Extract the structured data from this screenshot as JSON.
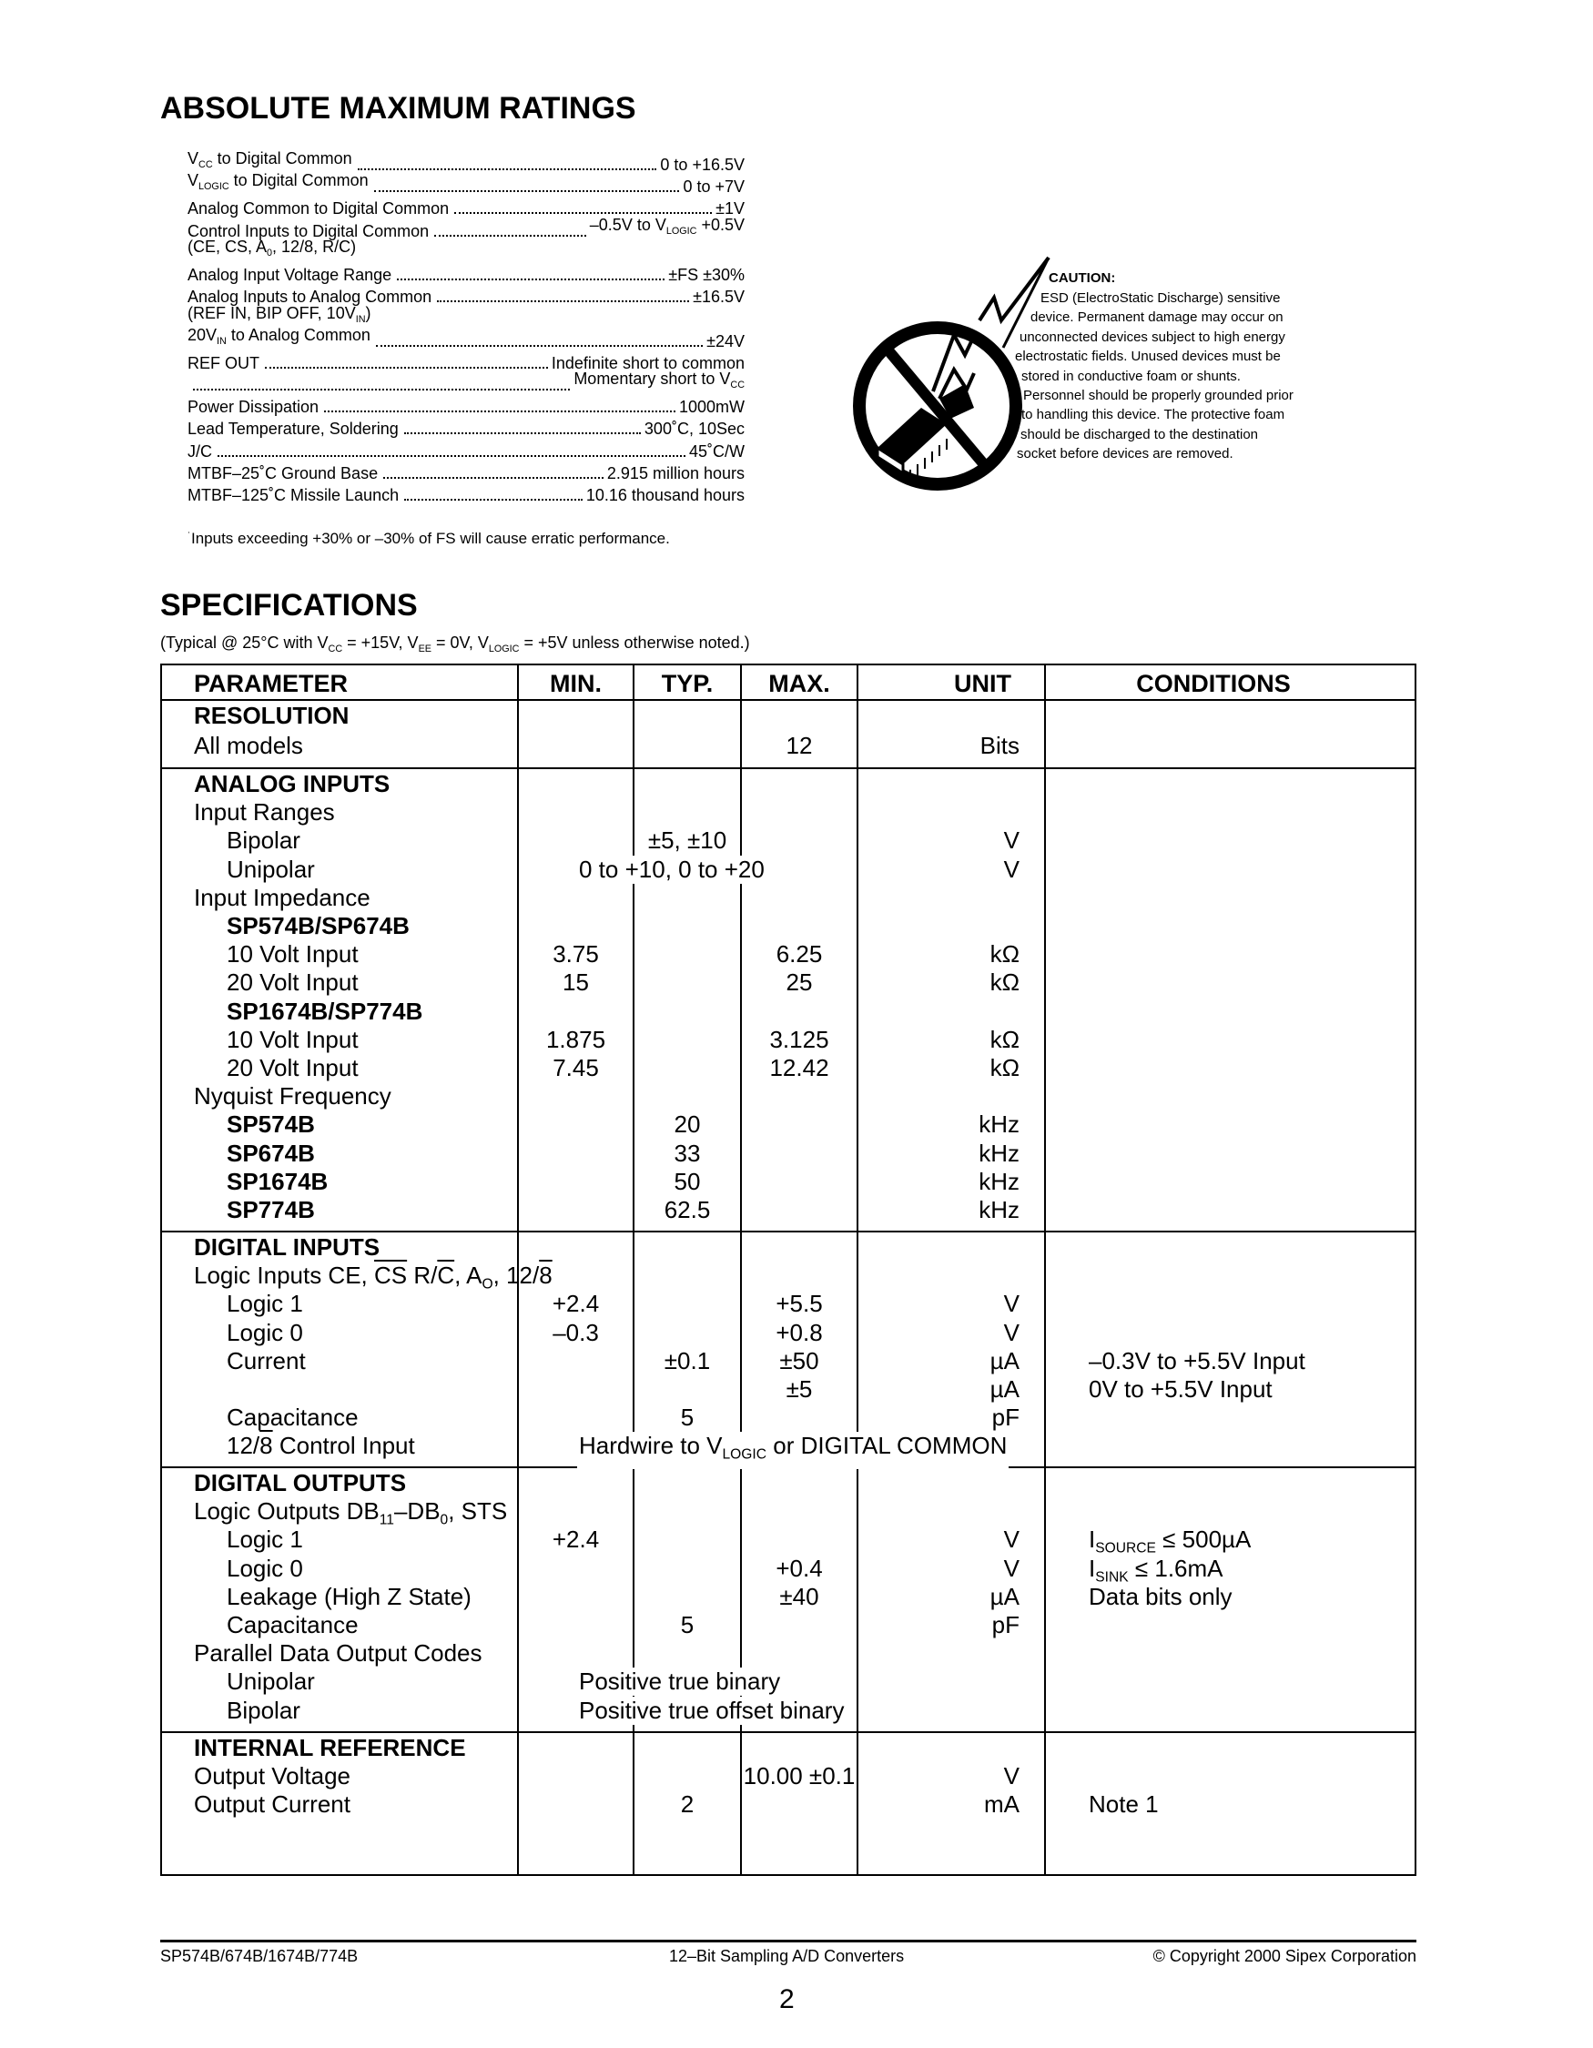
{
  "absolute_max": {
    "title": "ABSOLUTE MAXIMUM RATINGS",
    "items": [
      {
        "label": [
          [
            "V"
          ],
          [
            "CC",
            "sub"
          ],
          [
            " to Digital Common"
          ]
        ],
        "value": [
          [
            "0 to +16.5V"
          ]
        ]
      },
      {
        "label": [
          [
            "V"
          ],
          [
            "LOGIC",
            "sub"
          ],
          [
            " to Digital Common"
          ]
        ],
        "value": [
          [
            "0 to +7V"
          ]
        ]
      },
      {
        "label": [
          [
            "Analog Common to Digital Common"
          ]
        ],
        "value": [
          [
            "±1V"
          ]
        ]
      },
      {
        "label": [
          [
            "Control Inputs  to Digital Common"
          ]
        ],
        "value": [
          [
            "–0.5V to V"
          ],
          [
            "LOGIC",
            "sub"
          ],
          [
            " +0.5V"
          ]
        ]
      },
      {
        "label": [
          [
            "(CE, CS, A"
          ],
          [
            "0",
            "sub"
          ],
          [
            ", 12/8, R/C)"
          ]
        ],
        "value": []
      },
      {
        "label": [
          [
            "Analog Input Voltage Range"
          ]
        ],
        "value": [
          [
            "±FS ±30%"
          ]
        ]
      },
      {
        "label": [
          [
            "Analog Inputs  to Analog Common"
          ]
        ],
        "value": [
          [
            "±16.5V"
          ]
        ]
      },
      {
        "label": [
          [
            "(REF IN, BIP OFF, 10V"
          ],
          [
            "IN",
            "sub"
          ],
          [
            ")"
          ]
        ],
        "value": []
      },
      {
        "label": [
          [
            "20V"
          ],
          [
            "IN",
            "sub"
          ],
          [
            " to Analog Common"
          ]
        ],
        "value": [
          [
            "±24V"
          ]
        ]
      },
      {
        "label": [
          [
            "REF OUT"
          ]
        ],
        "value": [
          [
            "Indefinite short to common"
          ]
        ]
      },
      {
        "label": [],
        "value": [
          [
            "Momentary short to V"
          ],
          [
            "CC",
            "sub"
          ]
        ]
      },
      {
        "label": [
          [
            "Power Dissipation"
          ]
        ],
        "value": [
          [
            "1000mW"
          ]
        ]
      },
      {
        "label": [
          [
            "Lead Temperature, Soldering"
          ]
        ],
        "value": [
          [
            "300˚C,  10Sec"
          ]
        ]
      },
      {
        "label": [
          [
            "J/C"
          ]
        ],
        "value": [
          [
            "45˚C/W"
          ]
        ]
      },
      {
        "label": [
          [
            "MTBF–25˚C  Ground  Base"
          ]
        ],
        "value": [
          [
            "2.915 million hours"
          ]
        ]
      },
      {
        "label": [
          [
            "MTBF–125˚C  Missile  Launch"
          ]
        ],
        "value": [
          [
            "10.16 thousand hours"
          ]
        ]
      }
    ],
    "footnote_mark": "˙",
    "footnote": "Inputs exceeding +30% or –30% of FS will cause erratic performance."
  },
  "esd_caution": {
    "icon": "esd-warning-icon",
    "title": "CAUTION:",
    "lines": [
      "ESD (ElectroStatic Discharge) sensitive",
      "device. Permanent damage may occur on",
      "unconnected devices subject to high energy",
      "electrostatic fields. Unused devices must be",
      "stored in conductive foam or shunts.",
      "Personnel should be properly grounded prior",
      "to handling this device. The protective foam",
      "should be discharged to the destination",
      "socket before devices are removed."
    ]
  },
  "specifications": {
    "title": "SPECIFICATIONS",
    "subtitle": [
      [
        "(Typical @ 25°C with V"
      ],
      [
        "CC",
        "sub"
      ],
      [
        " = +15V, V"
      ],
      [
        "EE",
        "sub"
      ],
      [
        " = 0V, V"
      ],
      [
        "LOGIC",
        "sub"
      ],
      [
        " = +5V unless otherwise noted.)"
      ]
    ],
    "headers": {
      "parameter": "PARAMETER",
      "min": "MIN.",
      "typ": "TYP.",
      "max": "MAX.",
      "unit": "UNIT",
      "conditions": "CONDITIONS"
    },
    "sections": [
      {
        "rows": [
          {
            "level": 0,
            "param": "RESOLUTION"
          },
          {
            "level": 1,
            "param": "All models",
            "max": "12",
            "unit": "Bits"
          }
        ]
      },
      {
        "rows": [
          {
            "level": 0,
            "param": "ANALOG INPUTS"
          },
          {
            "level": 1,
            "param": "Input Ranges"
          },
          {
            "level": 2,
            "param": "Bipolar",
            "typ": "±5, ±10",
            "unit": "V"
          },
          {
            "level": 2,
            "param": "Unipolar",
            "span": "0 to +10, 0 to +20",
            "unit": "V"
          },
          {
            "level": 1,
            "param": "Input Impedance"
          },
          {
            "level": 2,
            "bold": true,
            "param": "SP574B/SP674B"
          },
          {
            "level": 2,
            "param": "10 Volt Input",
            "min": "3.75",
            "max": "6.25",
            "unit": "kΩ"
          },
          {
            "level": 2,
            "param": "20 Volt Input",
            "min": "15",
            "max": "25",
            "unit": "kΩ"
          },
          {
            "level": 2,
            "bold": true,
            "param": "SP1674B/SP774B"
          },
          {
            "level": 2,
            "param": "10 Volt Input",
            "min": "1.875",
            "max": "3.125",
            "unit": "kΩ"
          },
          {
            "level": 2,
            "param": "20 Volt Input",
            "min": "7.45",
            "max": "12.42",
            "unit": "kΩ"
          },
          {
            "level": 1,
            "param": "Nyquist Frequency"
          },
          {
            "level": 2,
            "bold": true,
            "param": "SP574B",
            "typ": "20",
            "unit": "kHz"
          },
          {
            "level": 2,
            "bold": true,
            "param": "SP674B",
            "typ": "33",
            "unit": "kHz"
          },
          {
            "level": 2,
            "bold": true,
            "param": "SP1674B",
            "typ": "50",
            "unit": "kHz"
          },
          {
            "level": 2,
            "bold": true,
            "param": "SP774B",
            "typ": "62.5",
            "unit": "kHz"
          }
        ]
      },
      {
        "rows": [
          {
            "level": 0,
            "param": "DIGITAL INPUTS"
          },
          {
            "level": 1,
            "param": [
              [
                "Logic Inputs CE, "
              ],
              [
                "CS",
                "over"
              ],
              [
                " R/"
              ],
              [
                "C",
                "over"
              ],
              [
                ", A"
              ],
              [
                "O",
                "sub"
              ],
              [
                ", 12/"
              ],
              [
                "8",
                "over"
              ]
            ]
          },
          {
            "level": 2,
            "param": "Logic 1",
            "min": "+2.4",
            "max": "+5.5",
            "unit": "V"
          },
          {
            "level": 2,
            "param": "Logic 0",
            "min": "–0.3",
            "max": "+0.8",
            "unit": "V"
          },
          {
            "level": 2,
            "param": "Current",
            "typ": "±0.1",
            "max": "±50",
            "unit": "µA",
            "cond": "–0.3V to +5.5V Input"
          },
          {
            "level": 2,
            "param": "",
            "max": "±5",
            "unit": "µA",
            "cond": "0V to +5.5V Input"
          },
          {
            "level": 2,
            "param": "Capacitance",
            "typ": "5",
            "unit": "pF"
          },
          {
            "level": 2,
            "param": [
              [
                "12/"
              ],
              [
                "8",
                "over"
              ],
              [
                " Control Input"
              ]
            ],
            "span": [
              [
                "Hardwire to V"
              ],
              [
                "LOGIC",
                "sub"
              ],
              [
                " or DIGITAL COMMON"
              ]
            ]
          }
        ]
      },
      {
        "rows": [
          {
            "level": 0,
            "param": "DIGITAL OUTPUTS"
          },
          {
            "level": 1,
            "param": [
              [
                "Logic Outputs DB"
              ],
              [
                "11",
                "sub"
              ],
              [
                "–DB"
              ],
              [
                "0",
                "sub"
              ],
              [
                ", STS"
              ]
            ]
          },
          {
            "level": 2,
            "param": "Logic 1",
            "min": "+2.4",
            "unit": "V",
            "cond": [
              [
                "I"
              ],
              [
                "SOURCE",
                "sub"
              ],
              [
                " ≤ 500µA"
              ]
            ]
          },
          {
            "level": 2,
            "param": "Logic 0",
            "max": "+0.4",
            "unit": "V",
            "cond": [
              [
                "I"
              ],
              [
                "SINK",
                "sub"
              ],
              [
                " ≤ 1.6mA"
              ]
            ]
          },
          {
            "level": 2,
            "param": "Leakage (High Z State)",
            "max": "±40",
            "unit": "µA",
            "cond": "Data bits only"
          },
          {
            "level": 2,
            "param": "Capacitance",
            "typ": "5",
            "unit": "pF"
          },
          {
            "level": 1,
            "param": "Parallel Data Output Codes"
          },
          {
            "level": 2,
            "param": "Unipolar",
            "span": "Positive true binary"
          },
          {
            "level": 2,
            "param": "Bipolar",
            "span": "Positive true offset binary"
          }
        ]
      },
      {
        "rows": [
          {
            "level": 0,
            "param": "INTERNAL REFERENCE"
          },
          {
            "level": 1,
            "param": "Output Voltage",
            "max": "10.00 ±0.1",
            "unit": "V"
          },
          {
            "level": 1,
            "param": "Output Current",
            "typ": "2",
            "unit": "mA",
            "cond": "Note 1"
          }
        ]
      }
    ]
  },
  "footer": {
    "left": "SP574B/674B/1674B/774B",
    "center": "12–Bit Sampling A/D Converters",
    "right": "© Copyright 2000 Sipex Corporation",
    "page_number": "2"
  }
}
